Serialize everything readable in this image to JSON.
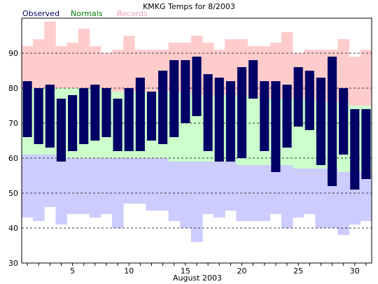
{
  "chart_data": {
    "type": "bar",
    "title": "KMKG Temps for 8/2003",
    "xlabel": "August 2003",
    "ylabel": "",
    "ylim": [
      30,
      100
    ],
    "yticks": [
      30,
      40,
      50,
      60,
      70,
      80,
      90
    ],
    "xticks": [
      5,
      10,
      15,
      20,
      25,
      30
    ],
    "grid": true,
    "legend": [
      {
        "name": "Observed",
        "color": "#000066"
      },
      {
        "name": "Normals",
        "color": "#007700"
      },
      {
        "name": "Records",
        "color": "#f0a0b0"
      }
    ],
    "colors": {
      "record_band": "#ffcccc",
      "normal_band": "#ccffcc",
      "below_band": "#ccccff",
      "observed_bar": "#000066"
    },
    "days": [
      1,
      2,
      3,
      4,
      5,
      6,
      7,
      8,
      9,
      10,
      11,
      12,
      13,
      14,
      15,
      16,
      17,
      18,
      19,
      20,
      21,
      22,
      23,
      24,
      25,
      26,
      27,
      28,
      29,
      30,
      31
    ],
    "series": [
      {
        "name": "Record High",
        "values": [
          92,
          94,
          99,
          92,
          93,
          97,
          92,
          90,
          91,
          95,
          91,
          91,
          91,
          93,
          93,
          95,
          93,
          91,
          94,
          94,
          92,
          92,
          93,
          96,
          90,
          91,
          91,
          91,
          94,
          89,
          91
        ]
      },
      {
        "name": "Normal High",
        "values": [
          80,
          80,
          80,
          80,
          80,
          80,
          80,
          80,
          79,
          79,
          79,
          79,
          79,
          79,
          79,
          78,
          78,
          78,
          78,
          78,
          78,
          77,
          77,
          77,
          77,
          77,
          76,
          76,
          76,
          75,
          75
        ]
      },
      {
        "name": "Normal Low",
        "values": [
          61,
          61,
          61,
          60,
          60,
          60,
          60,
          60,
          60,
          60,
          60,
          60,
          60,
          59,
          59,
          59,
          59,
          59,
          59,
          58,
          58,
          58,
          58,
          58,
          57,
          57,
          57,
          57,
          56,
          56,
          56
        ]
      },
      {
        "name": "Record Low",
        "values": [
          43,
          42,
          46,
          41,
          44,
          44,
          43,
          44,
          40,
          47,
          47,
          45,
          45,
          42,
          40,
          36,
          44,
          43,
          45,
          42,
          42,
          42,
          44,
          40,
          43,
          44,
          40,
          40,
          38,
          41,
          42
        ]
      },
      {
        "name": "Observed High",
        "values": [
          82,
          80,
          81,
          77,
          78,
          80,
          81,
          80,
          77,
          80,
          83,
          79,
          85,
          88,
          88,
          89,
          84,
          83,
          82,
          86,
          88,
          82,
          82,
          81,
          86,
          85,
          83,
          89,
          80,
          74,
          74
        ]
      },
      {
        "name": "Observed Low",
        "values": [
          66,
          64,
          63,
          59,
          62,
          64,
          65,
          66,
          62,
          62,
          62,
          65,
          64,
          66,
          70,
          72,
          62,
          59,
          59,
          60,
          77,
          62,
          56,
          63,
          69,
          68,
          58,
          52,
          61,
          51,
          54
        ]
      }
    ]
  }
}
